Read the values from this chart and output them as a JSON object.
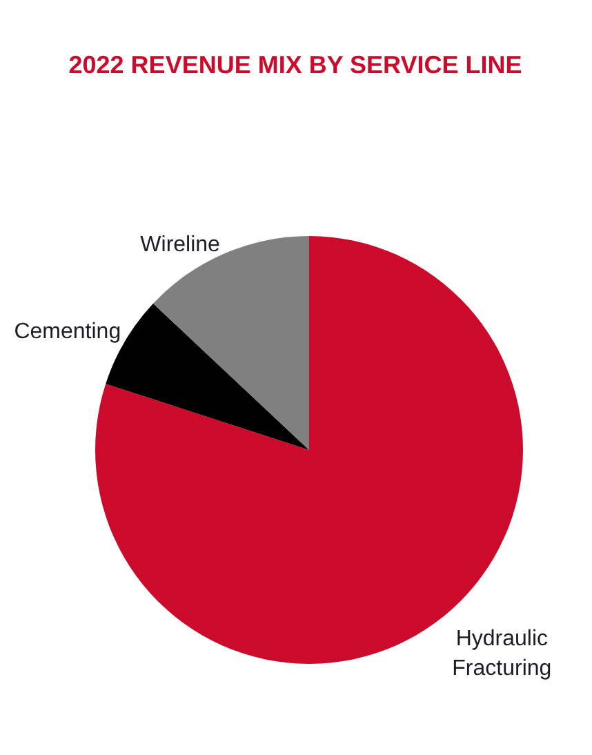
{
  "chart_data": {
    "type": "pie",
    "title": "2022 REVENUE MIX BY SERVICE LINE",
    "categories": [
      "Hydraulic Fracturing",
      "Cementing",
      "Wireline"
    ],
    "values": [
      80,
      7,
      13
    ],
    "colors": [
      "#cc0a2c",
      "#000000",
      "#808080"
    ]
  }
}
